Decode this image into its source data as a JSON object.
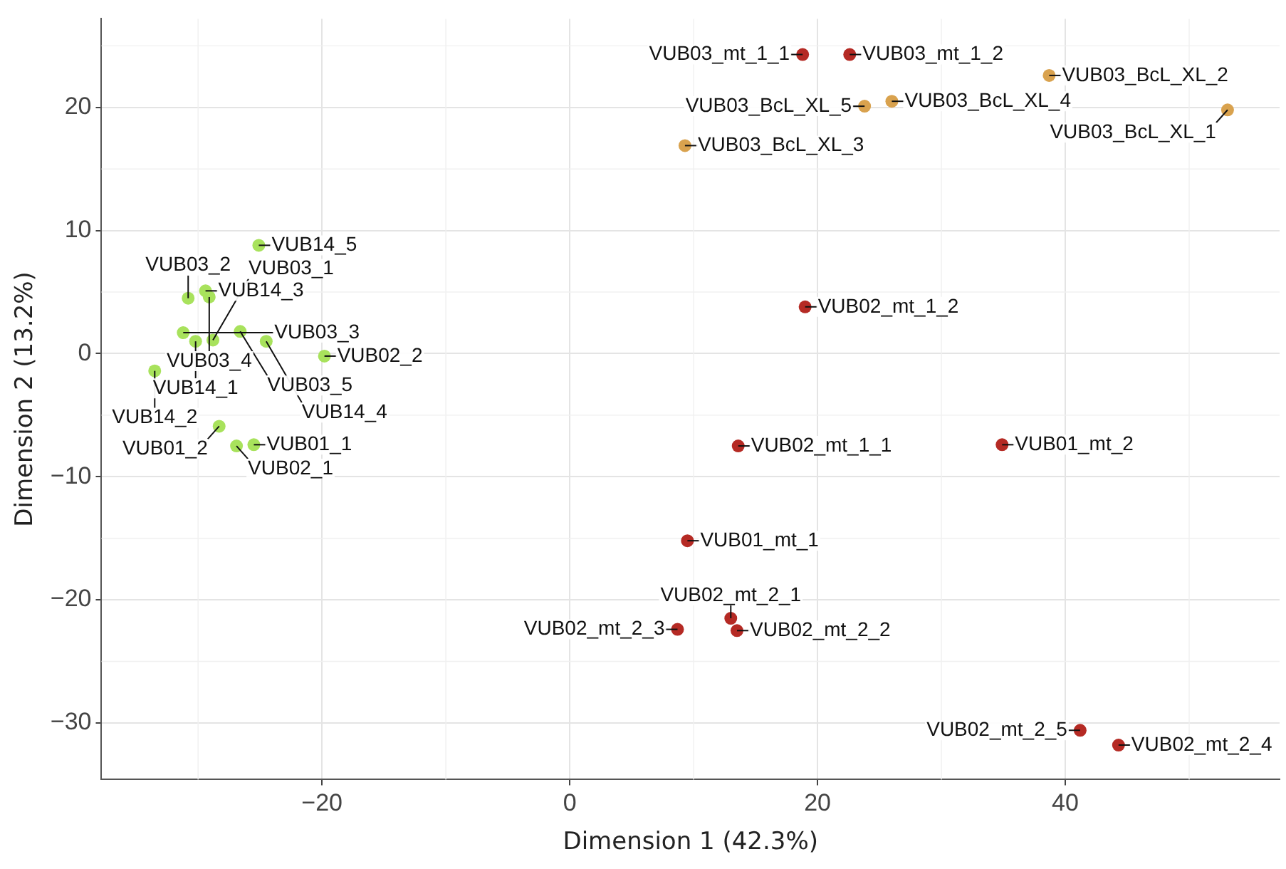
{
  "chart_data": {
    "type": "scatter",
    "xlabel": "Dimension 1 (42.3%)",
    "ylabel": "Dimension 2 (13.2%)",
    "xlim": [
      -37.8,
      57.3
    ],
    "ylim": [
      -34.6,
      27.2
    ],
    "xticks": [
      -20,
      0,
      20,
      40
    ],
    "yticks": [
      -30,
      -20,
      -10,
      0,
      10,
      20
    ],
    "grid": true,
    "marker": "circle",
    "legend": false,
    "series": [
      {
        "color": "#a8e25c",
        "x": [
          -25.1,
          -30.8,
          -29.4,
          -29.1,
          -31.2,
          -30.2,
          -28.8,
          -26.6,
          -24.5,
          -19.8,
          -33.5,
          -28.3,
          -26.9,
          -25.5
        ],
        "values": [
          8.8,
          4.5,
          5.1,
          4.6,
          1.7,
          1.0,
          1.1,
          1.8,
          1.0,
          -0.2,
          -1.4,
          -5.9,
          -7.5,
          -7.4
        ]
      },
      {
        "color": "#b52a24",
        "x": [
          18.8,
          22.6,
          19.0,
          13.6,
          34.9,
          9.5,
          13.0,
          13.5,
          8.7,
          41.2,
          44.3
        ],
        "values": [
          24.3,
          24.3,
          3.8,
          -7.5,
          -7.4,
          -15.2,
          -21.5,
          -22.5,
          -22.4,
          -30.6,
          -31.8
        ]
      },
      {
        "color": "#d9a24e",
        "x": [
          38.7,
          26.0,
          23.8,
          53.1,
          9.3
        ],
        "values": [
          22.6,
          20.5,
          20.1,
          19.8,
          16.9
        ]
      }
    ],
    "annotations": [
      {
        "text": "VUB14_5",
        "x": -25.1,
        "y": 8.8
      },
      {
        "text": "VUB03_2",
        "x": -30.8,
        "y": 4.5
      },
      {
        "text": "VUB14_3",
        "x": -29.4,
        "y": 5.1
      },
      {
        "text": "VUB03_4",
        "x": -29.1,
        "y": 4.6
      },
      {
        "text": "VUB03_3",
        "x": -31.2,
        "y": 1.7
      },
      {
        "text": "VUB14_1",
        "x": -30.2,
        "y": 1.0
      },
      {
        "text": "VUB03_1",
        "x": -28.8,
        "y": 1.1
      },
      {
        "text": "VUB03_5",
        "x": -26.6,
        "y": 1.8
      },
      {
        "text": "VUB14_4",
        "x": -24.5,
        "y": 1.0
      },
      {
        "text": "VUB02_2",
        "x": -19.8,
        "y": -0.2
      },
      {
        "text": "VUB14_2",
        "x": -33.5,
        "y": -1.4
      },
      {
        "text": "VUB01_2",
        "x": -28.3,
        "y": -5.9
      },
      {
        "text": "VUB02_1",
        "x": -26.9,
        "y": -7.5
      },
      {
        "text": "VUB01_1",
        "x": -25.5,
        "y": -7.4
      },
      {
        "text": "VUB03_mt_1_1",
        "x": 18.8,
        "y": 24.3
      },
      {
        "text": "VUB03_mt_1_2",
        "x": 22.6,
        "y": 24.3
      },
      {
        "text": "VUB02_mt_1_2",
        "x": 19.0,
        "y": 3.8
      },
      {
        "text": "VUB02_mt_1_1",
        "x": 13.6,
        "y": -7.5
      },
      {
        "text": "VUB01_mt_2",
        "x": 34.9,
        "y": -7.4
      },
      {
        "text": "VUB01_mt_1",
        "x": 9.5,
        "y": -15.2
      },
      {
        "text": "VUB02_mt_2_1",
        "x": 13.0,
        "y": -21.5
      },
      {
        "text": "VUB02_mt_2_2",
        "x": 13.5,
        "y": -22.5
      },
      {
        "text": "VUB02_mt_2_3",
        "x": 8.7,
        "y": -22.4
      },
      {
        "text": "VUB02_mt_2_5",
        "x": 41.2,
        "y": -30.6
      },
      {
        "text": "VUB02_mt_2_4",
        "x": 44.3,
        "y": -31.8
      },
      {
        "text": "VUB03_BcL_XL_2",
        "x": 38.7,
        "y": 22.6
      },
      {
        "text": "VUB03_BcL_XL_4",
        "x": 26.0,
        "y": 20.5
      },
      {
        "text": "VUB03_BcL_XL_5",
        "x": 23.8,
        "y": 20.1
      },
      {
        "text": "VUB03_BcL_XL_1",
        "x": 53.1,
        "y": 19.8
      },
      {
        "text": "VUB03_BcL_XL_3",
        "x": 9.3,
        "y": 16.9
      }
    ]
  }
}
